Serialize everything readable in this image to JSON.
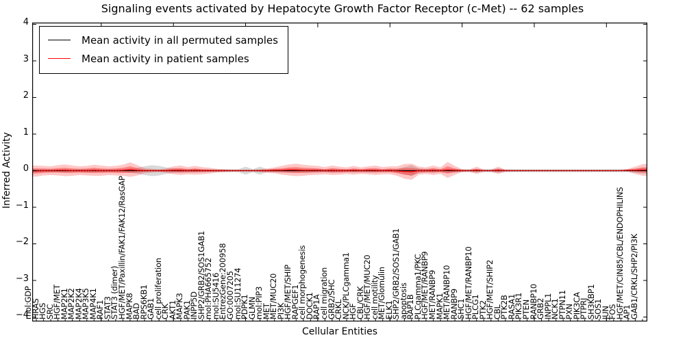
{
  "title": "Signaling events activated by Hepatocyte Growth Factor Receptor (c-Met) -- 62 samples",
  "axes": {
    "ylabel": "Inferred Activity",
    "xlabel": "Cellular Entities",
    "yticks": [
      "4",
      "3",
      "2",
      "1",
      "0",
      "−1",
      "−2",
      "−3",
      "−4"
    ],
    "ylim": [
      -4,
      4
    ],
    "grid": false
  },
  "legend": {
    "position": "upper left",
    "items": [
      {
        "label": "Mean activity in all permuted samples",
        "color": "#000000"
      },
      {
        "label": "Mean activity in patient samples",
        "color": "#ff0000"
      }
    ]
  },
  "colors": {
    "patient_line": "#ff0000",
    "permuted_line": "#000000",
    "patient_band": "#ff0000",
    "permuted_band": "#808080",
    "zero_line": "#000000"
  },
  "chart_data": {
    "type": "line",
    "title": "Signaling events activated by Hepatocyte Growth Factor Receptor (c-Met) -- 62 samples",
    "xlabel": "Cellular Entities",
    "ylabel": "Inferred Activity",
    "ylim": [
      -4,
      4
    ],
    "sample_count_note": "62 samples",
    "categories": [
      "mol:GDP",
      "HRAS",
      "HGS",
      "SRC",
      "HGF/MET",
      "MAP2K1",
      "MAP2K2",
      "MAP2K4",
      "MAP3K5",
      "MAP4K1",
      "RAF1",
      "STAT3",
      "STAT3 (dimer)",
      "HGF/MET/Paxillin/FAK1/FAK12/RasGAP",
      "MAPK8",
      "BAD",
      "RPS6KB1",
      "GAB1",
      "cell proliferation",
      "CRK",
      "AKT1",
      "MAPK3",
      "PAK1",
      "INPP5D",
      "SHP2/GRB2/SOS1GAB1",
      "mol:PHA665752",
      "mol:SU5416",
      "EntrezGene:200958",
      "GO:0007205",
      "mol:SU11274",
      "PDPK1",
      "GLMN",
      "mol:PIP3",
      "MET",
      "MET/MUC20",
      "PI3K",
      "HGF/MET/SHIP",
      "RAPGEF1",
      "cell morphogenesis",
      "DOCK1",
      "RAP1A",
      "cell migration",
      "GRB2/SHC",
      "CRKL",
      "NCK/PLCgamma1",
      "HGF",
      "CBL/CRK",
      "HGF/MET/MUC20",
      "cell motility",
      "MET/Glomulin",
      "ELK1",
      "SHP2/GRB2/SOS1/GAB1",
      "apoptosis",
      "RAP1B",
      "PLCgamma1/PKC",
      "HGF/MET/RANBP9",
      "MET/RANBP9",
      "MAPK1",
      "MET/RANBP10",
      "RANBP9",
      "SHC1",
      "HGF/MET/RANBP10",
      "PLCG1",
      "PTK2",
      "HGF/MET/SHIP2",
      "CBL",
      "PTK2B",
      "RASA1",
      "PIK3R1",
      "PTEN",
      "RANBP10",
      "GRB2",
      "INPPL1",
      "NCK1",
      "PTPN11",
      "PXN",
      "PIK3CA",
      "PTPRJ",
      "SH3KBP1",
      "SOS1",
      "JUN",
      "FOS",
      "HGF/MET/CIN85/CBL/ENDOPHILINS",
      "AP1",
      "GAB1/CRKL/SHP2/PI3K"
    ],
    "series": [
      {
        "name": "Mean activity in all permuted samples",
        "color": "#000000",
        "values": [
          0,
          0,
          0,
          0,
          0,
          0,
          0,
          0,
          0,
          0,
          0,
          0,
          0,
          0,
          0,
          0,
          0,
          0,
          0,
          0,
          0,
          0,
          0,
          0,
          0,
          0,
          0,
          0,
          0,
          0,
          0,
          0,
          0,
          0,
          0,
          0,
          0,
          0,
          0,
          0,
          0,
          0,
          0,
          0,
          0,
          0,
          0,
          0,
          0,
          0,
          0,
          0,
          0,
          0,
          0,
          0,
          0,
          0,
          0,
          0,
          0,
          0,
          0,
          0,
          0,
          0,
          0,
          0,
          0,
          0,
          0,
          0,
          0,
          0,
          0,
          0,
          0,
          0,
          0,
          0,
          0,
          0,
          0,
          0,
          0
        ]
      },
      {
        "name": "Mean activity in patient samples",
        "color": "#ff0000",
        "values": [
          -0.01,
          0,
          0,
          0.01,
          0.01,
          0,
          0,
          0,
          0.01,
          0,
          0,
          0,
          0.01,
          0.03,
          0.01,
          0,
          0,
          0,
          0,
          0.01,
          0.01,
          0,
          0.01,
          0,
          0,
          0,
          0,
          0,
          0,
          0,
          0,
          0,
          0,
          0.01,
          0.01,
          0.02,
          0.02,
          0.01,
          0.01,
          0.01,
          0,
          0.01,
          0,
          0,
          0.01,
          0,
          0.01,
          0.01,
          0,
          0.01,
          -0.01,
          -0.02,
          -0.03,
          0,
          0,
          0.01,
          0,
          0.02,
          0.01,
          0,
          0,
          0.01,
          0,
          0,
          0.01,
          0,
          0,
          0,
          0,
          0,
          0,
          0,
          0,
          0,
          0,
          0,
          0,
          0,
          0,
          0,
          0,
          0,
          0.01,
          0.01,
          0.02
        ]
      },
      {
        "name": "patient band outer halfwidth (±)",
        "color": "#ff0000",
        "values": [
          0.15,
          0.13,
          0.12,
          0.14,
          0.16,
          0.14,
          0.12,
          0.13,
          0.15,
          0.14,
          0.12,
          0.13,
          0.15,
          0.2,
          0.14,
          0.07,
          0.05,
          0.04,
          0.06,
          0.11,
          0.13,
          0.1,
          0.12,
          0.1,
          0.08,
          0.05,
          0.04,
          0.03,
          0.03,
          0.03,
          0.03,
          0.04,
          0.06,
          0.08,
          0.12,
          0.15,
          0.17,
          0.15,
          0.13,
          0.12,
          0.1,
          0.13,
          0.11,
          0.09,
          0.12,
          0.09,
          0.11,
          0.13,
          0.1,
          0.11,
          0.13,
          0.2,
          0.22,
          0.11,
          0.09,
          0.13,
          0.09,
          0.22,
          0.12,
          0.04,
          0.03,
          0.1,
          0.03,
          0.03,
          0.1,
          0.03,
          0.02,
          0.02,
          0.02,
          0.02,
          0.02,
          0.02,
          0.02,
          0.02,
          0.02,
          0.02,
          0.02,
          0.02,
          0.02,
          0.02,
          0.02,
          0.02,
          0.04,
          0.1,
          0.16
        ]
      },
      {
        "name": "patient band inner halfwidth (±)",
        "color": "#ff0000",
        "values": [
          0.07,
          0.06,
          0.05,
          0.06,
          0.07,
          0.06,
          0.05,
          0.06,
          0.07,
          0.06,
          0.05,
          0.06,
          0.07,
          0.09,
          0.06,
          0.03,
          0.02,
          0.02,
          0.03,
          0.05,
          0.06,
          0.04,
          0.05,
          0.04,
          0.03,
          0.02,
          0.02,
          0.01,
          0.01,
          0.01,
          0.01,
          0.02,
          0.03,
          0.04,
          0.05,
          0.07,
          0.08,
          0.07,
          0.06,
          0.05,
          0.04,
          0.06,
          0.05,
          0.04,
          0.05,
          0.04,
          0.05,
          0.06,
          0.04,
          0.05,
          0.06,
          0.09,
          0.1,
          0.05,
          0.04,
          0.06,
          0.04,
          0.1,
          0.05,
          0.02,
          0.01,
          0.04,
          0.01,
          0.01,
          0.04,
          0.01,
          0.01,
          0.01,
          0.01,
          0.01,
          0.01,
          0.01,
          0.01,
          0.01,
          0.01,
          0.01,
          0.01,
          0.01,
          0.01,
          0.01,
          0.01,
          0.01,
          0.02,
          0.04,
          0.07
        ]
      },
      {
        "name": "permuted band halfwidth (±)",
        "color": "#808080",
        "values": [
          0.05,
          0.04,
          0.04,
          0.04,
          0.05,
          0.04,
          0.04,
          0.04,
          0.05,
          0.04,
          0.04,
          0.04,
          0.05,
          0.06,
          0.08,
          0.12,
          0.15,
          0.13,
          0.09,
          0.06,
          0.05,
          0.05,
          0.05,
          0.04,
          0.04,
          0.04,
          0.04,
          0.04,
          0.04,
          0.11,
          0.04,
          0.11,
          0.04,
          0.05,
          0.05,
          0.06,
          0.06,
          0.05,
          0.05,
          0.05,
          0.04,
          0.05,
          0.04,
          0.04,
          0.05,
          0.04,
          0.05,
          0.04,
          0.04,
          0.04,
          0.05,
          0.1,
          0.15,
          0.06,
          0.05,
          0.05,
          0.04,
          0.06,
          0.05,
          0.04,
          0.04,
          0.05,
          0.04,
          0.04,
          0.06,
          0.04,
          0.04,
          0.04,
          0.04,
          0.04,
          0.04,
          0.04,
          0.04,
          0.04,
          0.04,
          0.04,
          0.04,
          0.04,
          0.04,
          0.04,
          0.04,
          0.04,
          0.04,
          0.06,
          0.08
        ]
      }
    ]
  }
}
